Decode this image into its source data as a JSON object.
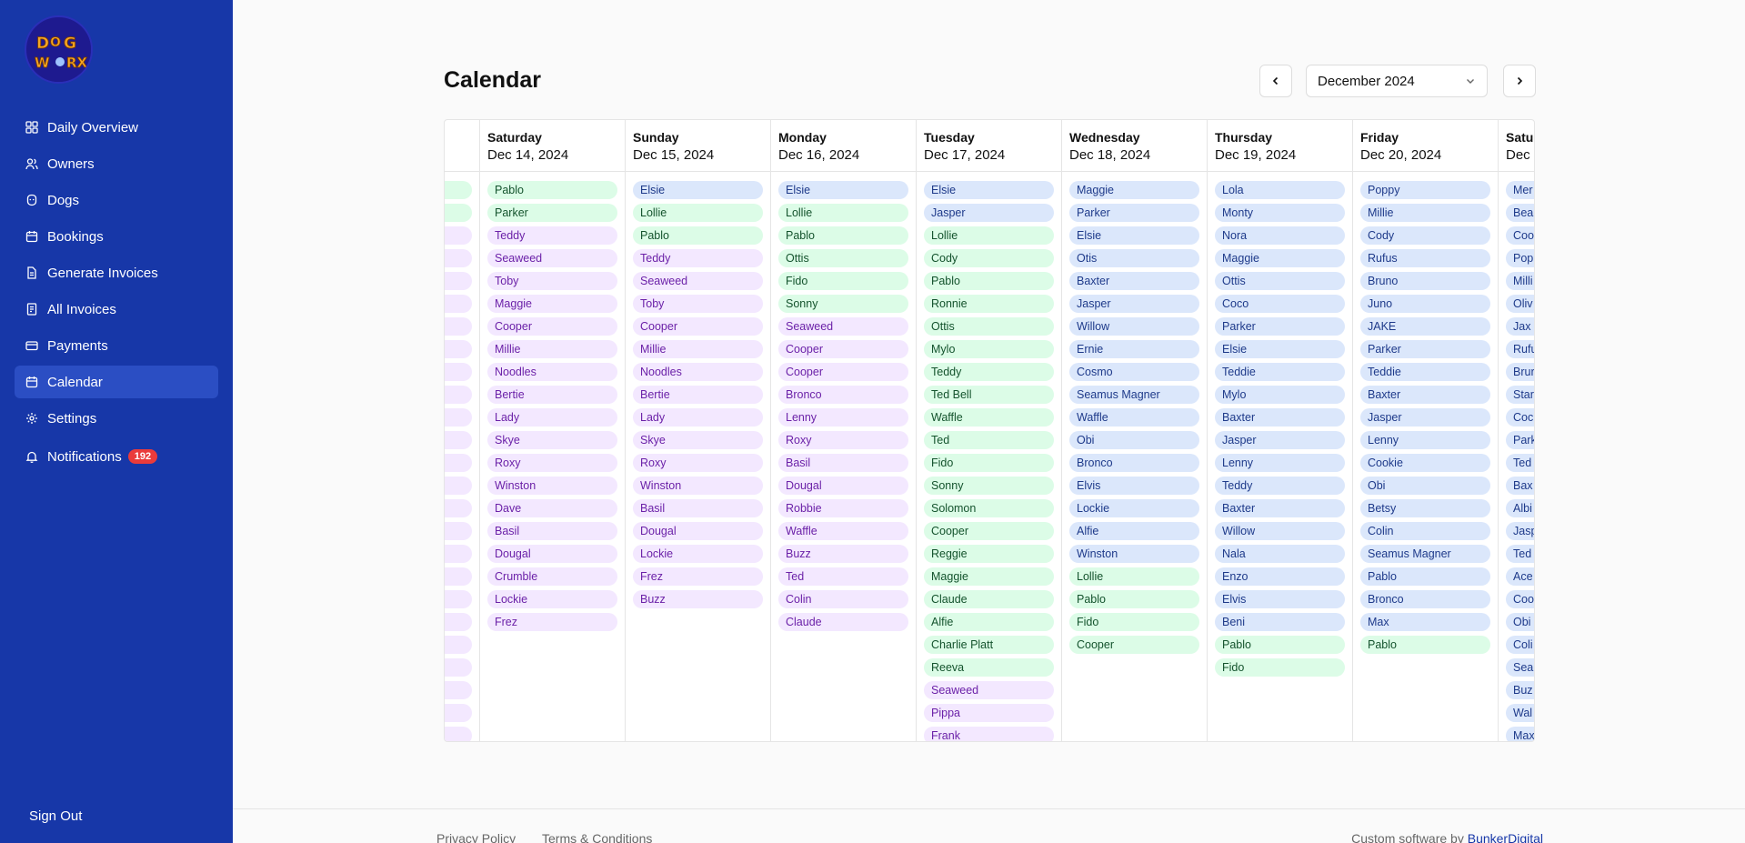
{
  "sidebar": {
    "logo_text": "DOG WORX",
    "items": [
      {
        "label": "Daily Overview",
        "icon": "dashboard-icon"
      },
      {
        "label": "Owners",
        "icon": "users-icon"
      },
      {
        "label": "Dogs",
        "icon": "paw-icon"
      },
      {
        "label": "Bookings",
        "icon": "calendar-icon"
      },
      {
        "label": "Generate Invoices",
        "icon": "file-icon"
      },
      {
        "label": "All Invoices",
        "icon": "receipt-icon"
      },
      {
        "label": "Payments",
        "icon": "credit-card-icon"
      },
      {
        "label": "Calendar",
        "icon": "calendar-icon"
      },
      {
        "label": "Settings",
        "icon": "gear-icon"
      },
      {
        "label": "Notifications",
        "icon": "bell-icon",
        "badge": "192"
      }
    ],
    "active_index": 7,
    "sign_out": "Sign Out"
  },
  "main": {
    "title": "Calendar",
    "month_select": "December 2024"
  },
  "colors": {
    "sidebar_bg": "#1737a8",
    "blue_pill": "#dbe7fb",
    "green_pill": "#dcfce7",
    "purple_pill": "#f3e8ff",
    "badge": "#ea3b3b"
  },
  "calendar": {
    "columns": [
      {
        "day": "",
        "date": "",
        "dogs": [
          {
            "name": "",
            "color": "green"
          },
          {
            "name": "",
            "color": "green"
          },
          {
            "name": "",
            "color": "purple"
          },
          {
            "name": "",
            "color": "purple"
          },
          {
            "name": "",
            "color": "purple"
          },
          {
            "name": "",
            "color": "purple"
          },
          {
            "name": "",
            "color": "purple"
          },
          {
            "name": "",
            "color": "purple"
          },
          {
            "name": "",
            "color": "purple"
          },
          {
            "name": "",
            "color": "purple"
          },
          {
            "name": "",
            "color": "purple"
          },
          {
            "name": "",
            "color": "purple"
          },
          {
            "name": "",
            "color": "purple"
          },
          {
            "name": "",
            "color": "purple"
          },
          {
            "name": "",
            "color": "purple"
          },
          {
            "name": "",
            "color": "purple"
          },
          {
            "name": "",
            "color": "purple"
          },
          {
            "name": "",
            "color": "purple"
          },
          {
            "name": "",
            "color": "purple"
          },
          {
            "name": "",
            "color": "purple"
          },
          {
            "name": "",
            "color": "purple"
          },
          {
            "name": "",
            "color": "purple"
          },
          {
            "name": "",
            "color": "purple"
          },
          {
            "name": "",
            "color": "purple"
          },
          {
            "name": "",
            "color": "purple"
          }
        ]
      },
      {
        "day": "Saturday",
        "date": "Dec 14, 2024",
        "dogs": [
          {
            "name": "Pablo",
            "color": "green"
          },
          {
            "name": "Parker",
            "color": "green"
          },
          {
            "name": "Teddy",
            "color": "purple"
          },
          {
            "name": "Seaweed",
            "color": "purple"
          },
          {
            "name": "Toby",
            "color": "purple"
          },
          {
            "name": "Maggie",
            "color": "purple"
          },
          {
            "name": "Cooper",
            "color": "purple"
          },
          {
            "name": "Millie",
            "color": "purple"
          },
          {
            "name": "Noodles",
            "color": "purple"
          },
          {
            "name": "Bertie",
            "color": "purple"
          },
          {
            "name": "Lady",
            "color": "purple"
          },
          {
            "name": "Skye",
            "color": "purple"
          },
          {
            "name": "Roxy",
            "color": "purple"
          },
          {
            "name": "Winston",
            "color": "purple"
          },
          {
            "name": "Dave",
            "color": "purple"
          },
          {
            "name": "Basil",
            "color": "purple"
          },
          {
            "name": "Dougal",
            "color": "purple"
          },
          {
            "name": "Crumble",
            "color": "purple"
          },
          {
            "name": "Lockie",
            "color": "purple"
          },
          {
            "name": "Frez",
            "color": "purple"
          }
        ]
      },
      {
        "day": "Sunday",
        "date": "Dec 15, 2024",
        "dogs": [
          {
            "name": "Elsie",
            "color": "blue"
          },
          {
            "name": "Lollie",
            "color": "green"
          },
          {
            "name": "Pablo",
            "color": "green"
          },
          {
            "name": "Teddy",
            "color": "purple"
          },
          {
            "name": "Seaweed",
            "color": "purple"
          },
          {
            "name": "Toby",
            "color": "purple"
          },
          {
            "name": "Cooper",
            "color": "purple"
          },
          {
            "name": "Millie",
            "color": "purple"
          },
          {
            "name": "Noodles",
            "color": "purple"
          },
          {
            "name": "Bertie",
            "color": "purple"
          },
          {
            "name": "Lady",
            "color": "purple"
          },
          {
            "name": "Skye",
            "color": "purple"
          },
          {
            "name": "Roxy",
            "color": "purple"
          },
          {
            "name": "Winston",
            "color": "purple"
          },
          {
            "name": "Basil",
            "color": "purple"
          },
          {
            "name": "Dougal",
            "color": "purple"
          },
          {
            "name": "Lockie",
            "color": "purple"
          },
          {
            "name": "Frez",
            "color": "purple"
          },
          {
            "name": "Buzz",
            "color": "purple"
          }
        ]
      },
      {
        "day": "Monday",
        "date": "Dec 16, 2024",
        "dogs": [
          {
            "name": "Elsie",
            "color": "blue"
          },
          {
            "name": "Lollie",
            "color": "green"
          },
          {
            "name": "Pablo",
            "color": "green"
          },
          {
            "name": "Ottis",
            "color": "green"
          },
          {
            "name": "Fido",
            "color": "green"
          },
          {
            "name": "Sonny",
            "color": "green"
          },
          {
            "name": "Seaweed",
            "color": "purple"
          },
          {
            "name": "Cooper",
            "color": "purple"
          },
          {
            "name": "Cooper",
            "color": "purple"
          },
          {
            "name": "Bronco",
            "color": "purple"
          },
          {
            "name": "Lenny",
            "color": "purple"
          },
          {
            "name": "Roxy",
            "color": "purple"
          },
          {
            "name": "Basil",
            "color": "purple"
          },
          {
            "name": "Dougal",
            "color": "purple"
          },
          {
            "name": "Robbie",
            "color": "purple"
          },
          {
            "name": "Waffle",
            "color": "purple"
          },
          {
            "name": "Buzz",
            "color": "purple"
          },
          {
            "name": "Ted",
            "color": "purple"
          },
          {
            "name": "Colin",
            "color": "purple"
          },
          {
            "name": "Claude",
            "color": "purple"
          }
        ]
      },
      {
        "day": "Tuesday",
        "date": "Dec 17, 2024",
        "dogs": [
          {
            "name": "Elsie",
            "color": "blue"
          },
          {
            "name": "Jasper",
            "color": "blue"
          },
          {
            "name": "Lollie",
            "color": "green"
          },
          {
            "name": "Cody",
            "color": "green"
          },
          {
            "name": "Pablo",
            "color": "green"
          },
          {
            "name": "Ronnie",
            "color": "green"
          },
          {
            "name": "Ottis",
            "color": "green"
          },
          {
            "name": "Mylo",
            "color": "green"
          },
          {
            "name": "Teddy",
            "color": "green"
          },
          {
            "name": "Ted Bell",
            "color": "green"
          },
          {
            "name": "Waffle",
            "color": "green"
          },
          {
            "name": "Ted",
            "color": "green"
          },
          {
            "name": "Fido",
            "color": "green"
          },
          {
            "name": "Sonny",
            "color": "green"
          },
          {
            "name": "Solomon",
            "color": "green"
          },
          {
            "name": "Cooper",
            "color": "green"
          },
          {
            "name": "Reggie",
            "color": "green"
          },
          {
            "name": "Maggie",
            "color": "green"
          },
          {
            "name": "Claude",
            "color": "green"
          },
          {
            "name": "Alfie",
            "color": "green"
          },
          {
            "name": "Charlie Platt",
            "color": "green"
          },
          {
            "name": "Reeva",
            "color": "green"
          },
          {
            "name": "Seaweed",
            "color": "purple"
          },
          {
            "name": "Pippa",
            "color": "purple"
          },
          {
            "name": "Frank",
            "color": "purple"
          }
        ]
      },
      {
        "day": "Wednesday",
        "date": "Dec 18, 2024",
        "dogs": [
          {
            "name": "Maggie",
            "color": "blue"
          },
          {
            "name": "Parker",
            "color": "blue"
          },
          {
            "name": "Elsie",
            "color": "blue"
          },
          {
            "name": "Otis",
            "color": "blue"
          },
          {
            "name": "Baxter",
            "color": "blue"
          },
          {
            "name": "Jasper",
            "color": "blue"
          },
          {
            "name": "Willow",
            "color": "blue"
          },
          {
            "name": "Ernie",
            "color": "blue"
          },
          {
            "name": "Cosmo",
            "color": "blue"
          },
          {
            "name": "Seamus Magner",
            "color": "blue"
          },
          {
            "name": "Waffle",
            "color": "blue"
          },
          {
            "name": "Obi",
            "color": "blue"
          },
          {
            "name": "Bronco",
            "color": "blue"
          },
          {
            "name": "Elvis",
            "color": "blue"
          },
          {
            "name": "Lockie",
            "color": "blue"
          },
          {
            "name": "Alfie",
            "color": "blue"
          },
          {
            "name": "Winston",
            "color": "blue"
          },
          {
            "name": "Lollie",
            "color": "green"
          },
          {
            "name": "Pablo",
            "color": "green"
          },
          {
            "name": "Fido",
            "color": "green"
          },
          {
            "name": "Cooper",
            "color": "green"
          }
        ]
      },
      {
        "day": "Thursday",
        "date": "Dec 19, 2024",
        "dogs": [
          {
            "name": "Lola",
            "color": "blue"
          },
          {
            "name": "Monty",
            "color": "blue"
          },
          {
            "name": "Nora",
            "color": "blue"
          },
          {
            "name": "Maggie",
            "color": "blue"
          },
          {
            "name": "Ottis",
            "color": "blue"
          },
          {
            "name": "Coco",
            "color": "blue"
          },
          {
            "name": "Parker",
            "color": "blue"
          },
          {
            "name": "Elsie",
            "color": "blue"
          },
          {
            "name": "Teddie",
            "color": "blue"
          },
          {
            "name": "Mylo",
            "color": "blue"
          },
          {
            "name": "Baxter",
            "color": "blue"
          },
          {
            "name": "Jasper",
            "color": "blue"
          },
          {
            "name": "Lenny",
            "color": "blue"
          },
          {
            "name": "Teddy",
            "color": "blue"
          },
          {
            "name": "Baxter",
            "color": "blue"
          },
          {
            "name": "Willow",
            "color": "blue"
          },
          {
            "name": "Nala",
            "color": "blue"
          },
          {
            "name": "Enzo",
            "color": "blue"
          },
          {
            "name": "Elvis",
            "color": "blue"
          },
          {
            "name": "Beni",
            "color": "blue"
          },
          {
            "name": "Pablo",
            "color": "green"
          },
          {
            "name": "Fido",
            "color": "green"
          }
        ]
      },
      {
        "day": "Friday",
        "date": "Dec 20, 2024",
        "dogs": [
          {
            "name": "Poppy",
            "color": "blue"
          },
          {
            "name": "Millie",
            "color": "blue"
          },
          {
            "name": "Cody",
            "color": "blue"
          },
          {
            "name": "Rufus",
            "color": "blue"
          },
          {
            "name": "Bruno",
            "color": "blue"
          },
          {
            "name": "Juno",
            "color": "blue"
          },
          {
            "name": "JAKE",
            "color": "blue"
          },
          {
            "name": "Parker",
            "color": "blue"
          },
          {
            "name": "Teddie",
            "color": "blue"
          },
          {
            "name": "Baxter",
            "color": "blue"
          },
          {
            "name": "Jasper",
            "color": "blue"
          },
          {
            "name": "Lenny",
            "color": "blue"
          },
          {
            "name": "Cookie",
            "color": "blue"
          },
          {
            "name": "Obi",
            "color": "blue"
          },
          {
            "name": "Betsy",
            "color": "blue"
          },
          {
            "name": "Colin",
            "color": "blue"
          },
          {
            "name": "Seamus Magner",
            "color": "blue"
          },
          {
            "name": "Pablo",
            "color": "blue"
          },
          {
            "name": "Bronco",
            "color": "blue"
          },
          {
            "name": "Max",
            "color": "blue"
          },
          {
            "name": "Pablo",
            "color": "green"
          }
        ]
      },
      {
        "day": "Satu",
        "date": "Dec",
        "dogs": [
          {
            "name": "Mer",
            "color": "blue"
          },
          {
            "name": "Bea",
            "color": "blue"
          },
          {
            "name": "Coo",
            "color": "blue"
          },
          {
            "name": "Pop",
            "color": "blue"
          },
          {
            "name": "Milli",
            "color": "blue"
          },
          {
            "name": "Oliv",
            "color": "blue"
          },
          {
            "name": "Jax",
            "color": "blue"
          },
          {
            "name": "Rufu",
            "color": "blue"
          },
          {
            "name": "Brur",
            "color": "blue"
          },
          {
            "name": "Star",
            "color": "blue"
          },
          {
            "name": "Coc",
            "color": "blue"
          },
          {
            "name": "Park",
            "color": "blue"
          },
          {
            "name": "Ted",
            "color": "blue"
          },
          {
            "name": "Bax",
            "color": "blue"
          },
          {
            "name": "Albi",
            "color": "blue"
          },
          {
            "name": "Jasp",
            "color": "blue"
          },
          {
            "name": "Ted",
            "color": "blue"
          },
          {
            "name": "Ace",
            "color": "blue"
          },
          {
            "name": "Coo",
            "color": "blue"
          },
          {
            "name": "Obi",
            "color": "blue"
          },
          {
            "name": "Coli",
            "color": "blue"
          },
          {
            "name": "Sea",
            "color": "blue"
          },
          {
            "name": "Buz",
            "color": "blue"
          },
          {
            "name": "Wal",
            "color": "blue"
          },
          {
            "name": "Max",
            "color": "blue"
          }
        ]
      }
    ]
  },
  "footer": {
    "privacy": "Privacy Policy",
    "terms": "Terms & Conditions",
    "credit_prefix": "Custom software by",
    "credit_brand": "BunkerDigital"
  }
}
